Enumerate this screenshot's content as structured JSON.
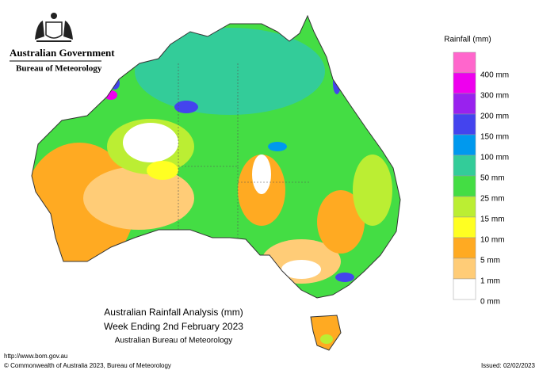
{
  "header": {
    "title": "Australian Government",
    "subtitle": "Bureau of Meteorology"
  },
  "legend": {
    "title": "Rainfall (mm)",
    "items": [
      {
        "label": "400 mm",
        "color": "#ff66cc"
      },
      {
        "label": "300 mm",
        "color": "#ee00ee"
      },
      {
        "label": "200 mm",
        "color": "#9922ee"
      },
      {
        "label": "150 mm",
        "color": "#4444ee"
      },
      {
        "label": "100 mm",
        "color": "#0099ee"
      },
      {
        "label": "50 mm",
        "color": "#33cc99"
      },
      {
        "label": "25 mm",
        "color": "#44dd44"
      },
      {
        "label": "15 mm",
        "color": "#bbee33"
      },
      {
        "label": "10 mm",
        "color": "#ffff22"
      },
      {
        "label": "5 mm",
        "color": "#ffaa22"
      },
      {
        "label": "1 mm",
        "color": "#ffcc77"
      },
      {
        "label": "0 mm",
        "color": "#ffffff"
      }
    ]
  },
  "caption": {
    "title": "Australian Rainfall Analysis (mm)",
    "subtitle": "Week Ending 2nd February 2023",
    "source": "Australian Bureau of Meteorology"
  },
  "footer": {
    "url": "http://www.bom.gov.au",
    "copyright": "© Commonwealth of Australia 2023, Bureau of Meteorology",
    "issued": "Issued: 02/02/2023"
  }
}
